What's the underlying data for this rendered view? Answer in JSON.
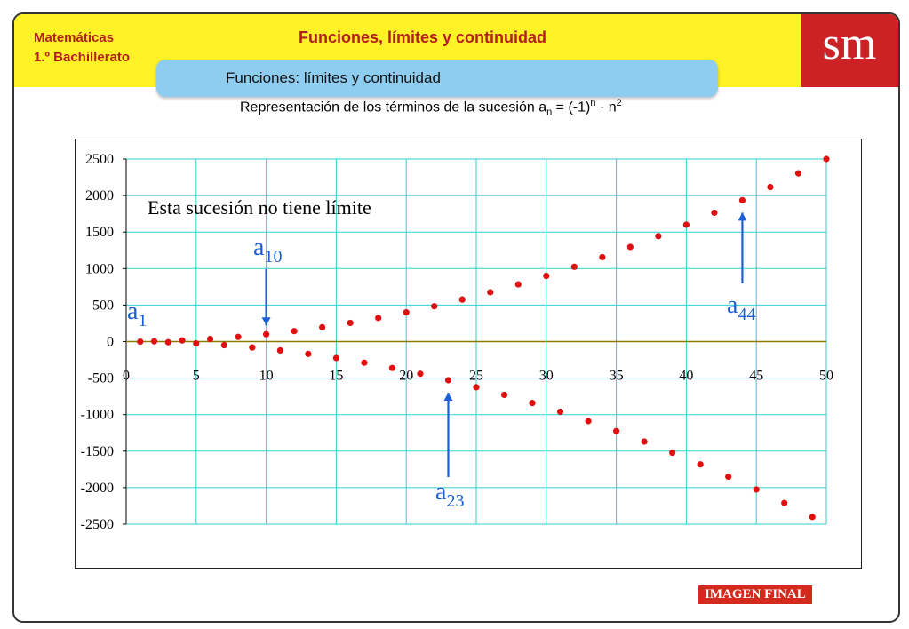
{
  "header": {
    "subject_line1": "Matemáticas",
    "subject_line2": "1.º Bachillerato",
    "title": "Funciones, límites y continuidad",
    "logo": "sm"
  },
  "tab": {
    "label": "Funciones: límites y continuidad"
  },
  "caption": {
    "text": "Representación de los términos de la sucesión a",
    "sub": "n",
    "mid": " = (-1)",
    "sup1": "n",
    "dot": " · n",
    "sup2": "2"
  },
  "badge": "IMAGEN FINAL",
  "colors": {
    "yellow": "#fff227",
    "brand_red": "#cc2226",
    "grid": "#2ed0d0",
    "point": "#e01010",
    "annot_blue": "#1a5fd6",
    "zero_line": "#8b7a00"
  },
  "chart_data": {
    "type": "scatter",
    "xlim": [
      0,
      50
    ],
    "ylim": [
      -2500,
      2500
    ],
    "xticks": [
      0,
      5,
      10,
      15,
      20,
      25,
      30,
      35,
      40,
      45,
      50
    ],
    "yticks": [
      2500,
      2000,
      1500,
      1000,
      500,
      0,
      -500,
      -1000,
      -1500,
      -2000,
      -2500
    ],
    "grid": true,
    "annotation_text": "Esta sucesión no tiene límite",
    "series": [
      {
        "x": [
          1,
          2,
          3,
          4,
          5,
          6,
          7,
          8,
          9,
          10,
          11,
          12,
          13,
          14,
          15,
          16,
          17,
          18,
          19,
          20,
          21,
          22,
          23,
          24,
          25,
          26,
          27,
          28,
          29,
          30,
          31,
          32,
          33,
          34,
          35,
          36,
          37,
          38,
          39,
          40,
          41,
          42,
          43,
          44,
          45,
          46,
          47,
          48,
          49,
          50
        ],
        "y": [
          -1,
          4,
          -9,
          16,
          -25,
          36,
          -49,
          64,
          -81,
          100,
          -121,
          144,
          -169,
          196,
          -225,
          256,
          -289,
          324,
          -361,
          400,
          -441,
          484,
          -529,
          576,
          -625,
          676,
          -729,
          784,
          -841,
          900,
          -961,
          1024,
          -1089,
          1156,
          -1225,
          1296,
          -1369,
          1444,
          -1521,
          1600,
          -1681,
          1764,
          -1849,
          1936,
          -2025,
          2116,
          -2209,
          2304,
          -2401,
          2500
        ]
      }
    ],
    "labels": [
      {
        "base": "a",
        "sub": "1",
        "n": 1
      },
      {
        "base": "a",
        "sub": "10",
        "n": 10
      },
      {
        "base": "a",
        "sub": "23",
        "n": 23
      },
      {
        "base": "a",
        "sub": "44",
        "n": 44
      }
    ]
  }
}
